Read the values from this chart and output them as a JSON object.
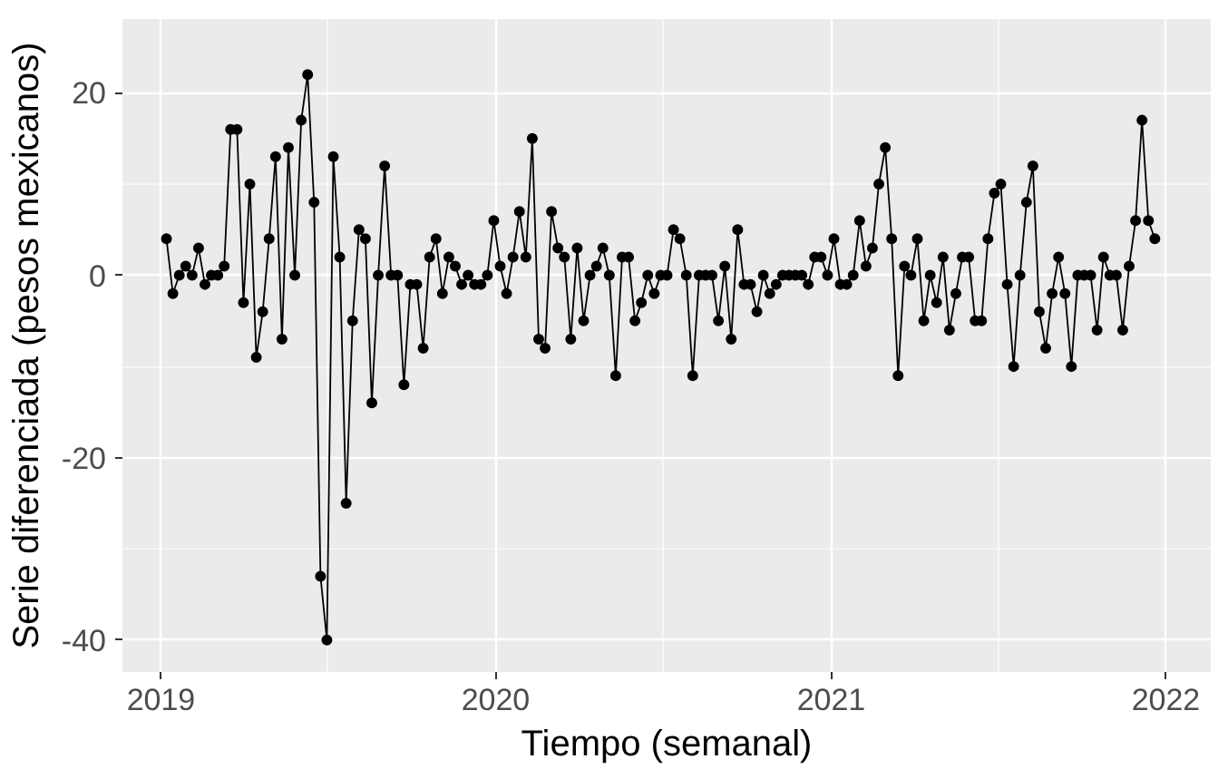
{
  "chart_data": {
    "type": "line",
    "xlabel": "Tiempo (semanal)",
    "ylabel": "Serie diferenciada (pesos mexicanos)",
    "x": [
      "2019-01-07",
      "2019-01-14",
      "2019-01-21",
      "2019-01-28",
      "2019-02-04",
      "2019-02-11",
      "2019-02-18",
      "2019-02-25",
      "2019-03-04",
      "2019-03-11",
      "2019-03-18",
      "2019-03-25",
      "2019-04-01",
      "2019-04-08",
      "2019-04-15",
      "2019-04-22",
      "2019-04-29",
      "2019-05-06",
      "2019-05-13",
      "2019-05-20",
      "2019-05-27",
      "2019-06-03",
      "2019-06-10",
      "2019-06-17",
      "2019-06-24",
      "2019-07-01",
      "2019-07-08",
      "2019-07-15",
      "2019-07-22",
      "2019-07-29",
      "2019-08-05",
      "2019-08-12",
      "2019-08-19",
      "2019-08-26",
      "2019-09-02",
      "2019-09-09",
      "2019-09-16",
      "2019-09-23",
      "2019-09-30",
      "2019-10-07",
      "2019-10-14",
      "2019-10-21",
      "2019-10-28",
      "2019-11-04",
      "2019-11-11",
      "2019-11-18",
      "2019-11-25",
      "2019-12-02",
      "2019-12-09",
      "2019-12-16",
      "2019-12-23",
      "2019-12-30",
      "2020-01-06",
      "2020-01-13",
      "2020-01-20",
      "2020-01-27",
      "2020-02-03",
      "2020-02-10",
      "2020-02-17",
      "2020-02-24",
      "2020-03-02",
      "2020-03-09",
      "2020-03-16",
      "2020-03-23",
      "2020-03-30",
      "2020-04-06",
      "2020-04-13",
      "2020-04-20",
      "2020-04-27",
      "2020-05-04",
      "2020-05-11",
      "2020-05-18",
      "2020-05-25",
      "2020-06-01",
      "2020-06-08",
      "2020-06-15",
      "2020-06-22",
      "2020-06-29",
      "2020-07-06",
      "2020-07-13",
      "2020-07-20",
      "2020-07-27",
      "2020-08-03",
      "2020-08-10",
      "2020-08-17",
      "2020-08-24",
      "2020-08-31",
      "2020-09-07",
      "2020-09-14",
      "2020-09-21",
      "2020-09-28",
      "2020-10-05",
      "2020-10-12",
      "2020-10-19",
      "2020-10-26",
      "2020-11-02",
      "2020-11-09",
      "2020-11-16",
      "2020-11-23",
      "2020-11-30",
      "2020-12-07",
      "2020-12-14",
      "2020-12-21",
      "2020-12-28",
      "2021-01-04",
      "2021-01-11",
      "2021-01-18",
      "2021-01-25",
      "2021-02-01",
      "2021-02-08",
      "2021-02-15",
      "2021-02-22",
      "2021-03-01",
      "2021-03-08",
      "2021-03-15",
      "2021-03-22",
      "2021-03-29",
      "2021-04-05",
      "2021-04-12",
      "2021-04-19",
      "2021-04-26",
      "2021-05-03",
      "2021-05-10",
      "2021-05-17",
      "2021-05-24",
      "2021-05-31",
      "2021-06-07",
      "2021-06-14",
      "2021-06-21",
      "2021-06-28",
      "2021-07-05",
      "2021-07-12",
      "2021-07-19",
      "2021-07-26",
      "2021-08-02",
      "2021-08-09",
      "2021-08-16",
      "2021-08-23",
      "2021-08-30",
      "2021-09-06",
      "2021-09-13",
      "2021-09-20",
      "2021-09-27",
      "2021-10-04",
      "2021-10-11",
      "2021-10-18",
      "2021-10-25",
      "2021-11-01",
      "2021-11-08",
      "2021-11-15",
      "2021-11-22",
      "2021-11-29",
      "2021-12-06",
      "2021-12-13",
      "2021-12-20"
    ],
    "series": [
      {
        "color": "#000000",
        "values": [
          4,
          -2,
          0,
          1,
          0,
          3,
          -1,
          0,
          0,
          1,
          16,
          16,
          -3,
          10,
          -9,
          -4,
          4,
          13,
          -7,
          14,
          0,
          17,
          22,
          8,
          -33,
          -40,
          13,
          2,
          -25,
          -5,
          5,
          4,
          -14,
          0,
          12,
          0,
          0,
          -12,
          -1,
          -1,
          -8,
          2,
          4,
          -2,
          2,
          1,
          -1,
          0,
          -1,
          -1,
          0,
          6,
          1,
          -2,
          2,
          7,
          2,
          15,
          -7,
          -8,
          7,
          3,
          2,
          -7,
          3,
          -5,
          0,
          1,
          3,
          0,
          -11,
          2,
          2,
          -5,
          -3,
          0,
          -2,
          0,
          0,
          5,
          4,
          0,
          -11,
          0,
          0,
          0,
          -5,
          1,
          -7,
          5,
          -1,
          -1,
          -4,
          0,
          -2,
          -1,
          0,
          0,
          0,
          0,
          -1,
          2,
          2,
          0,
          4,
          -1,
          -1,
          0,
          6,
          1,
          3,
          10,
          14,
          4,
          -11,
          1,
          0,
          4,
          -5,
          0,
          -3,
          2,
          -6,
          -2,
          2,
          2,
          -5,
          -5,
          4,
          9,
          10,
          -1,
          -10,
          0,
          8,
          12,
          -4,
          -8,
          -2,
          2,
          -2,
          -10,
          0,
          0,
          0,
          -6,
          2,
          0,
          0,
          -6,
          1,
          6,
          17,
          6,
          4
        ]
      }
    ],
    "xlim": [
      "2018-11-20",
      "2022-02-19"
    ],
    "xticks": [
      {
        "value": "2019-01-01",
        "label": "2019"
      },
      {
        "value": "2020-01-01",
        "label": "2020"
      },
      {
        "value": "2021-01-01",
        "label": "2021"
      },
      {
        "value": "2022-01-01",
        "label": "2022"
      }
    ],
    "ylim": [
      -43.5,
      28.1
    ],
    "yticks": [
      -40,
      -20,
      0,
      20
    ],
    "grid": true,
    "marker": "circle",
    "line_style": "solid"
  }
}
